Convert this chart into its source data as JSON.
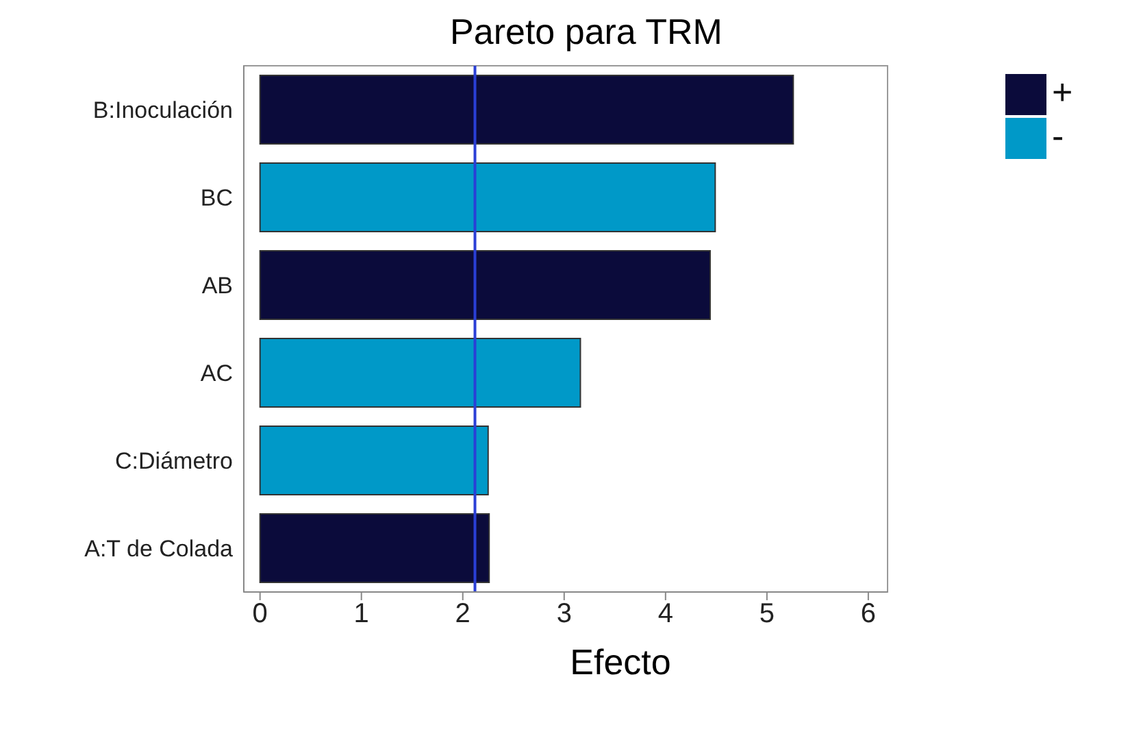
{
  "chart_data": {
    "type": "bar",
    "orientation": "horizontal",
    "stacked": true,
    "title": "Pareto para TRM",
    "xlabel": "Efecto",
    "categories": [
      "B:Inoculación",
      "BC",
      "AB",
      "AC",
      "C:Diámetro",
      "A:T de Colada"
    ],
    "series": [
      {
        "name": "+",
        "color": "#0b0b3b",
        "values": [
          5.26,
          null,
          4.44,
          null,
          null,
          2.26
        ]
      },
      {
        "name": "-",
        "color": "#0099c8",
        "values": [
          null,
          4.49,
          null,
          3.16,
          2.25,
          null
        ]
      }
    ],
    "xlim": [
      -0.16,
      6.19
    ],
    "xticks": [
      0,
      1,
      2,
      3,
      4,
      5,
      6
    ],
    "ref_lines": [
      {
        "axis": "x",
        "value": 2.12,
        "color": "#2a3fd6"
      }
    ],
    "legend": "top right"
  }
}
